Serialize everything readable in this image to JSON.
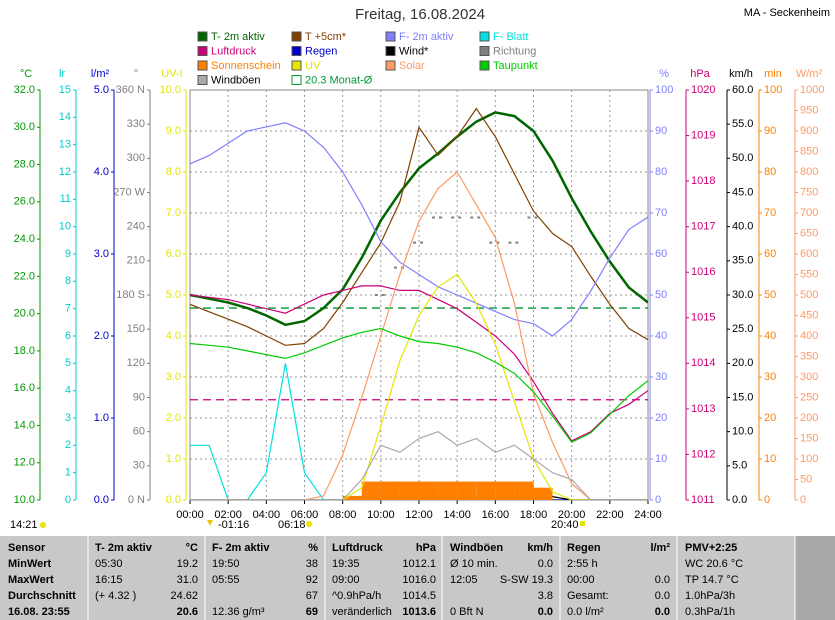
{
  "chart_data": {
    "type": "line",
    "title": "Freitag, 16.08.2024",
    "subtitle": "MA - Seckenheim",
    "x": [
      0,
      1,
      2,
      3,
      4,
      5,
      6,
      7,
      8,
      9,
      10,
      11,
      12,
      13,
      14,
      15,
      16,
      17,
      18,
      19,
      20,
      21,
      22,
      23,
      24
    ],
    "xlim": [
      0,
      24
    ],
    "xticks": [
      {
        "value": 0,
        "label": "00:00"
      },
      {
        "value": 2,
        "label": "02:00"
      },
      {
        "value": 4,
        "label": "04:00"
      },
      {
        "value": 6,
        "label": "06:00"
      },
      {
        "value": 8,
        "label": "08:00"
      },
      {
        "value": 10,
        "label": "10:00"
      },
      {
        "value": 12,
        "label": "12:00"
      },
      {
        "value": 14,
        "label": "14:00"
      },
      {
        "value": 16,
        "label": "16:00"
      },
      {
        "value": 18,
        "label": "18:00"
      },
      {
        "value": 20,
        "label": "20:00"
      },
      {
        "value": 22,
        "label": "22:00"
      },
      {
        "value": 24,
        "label": "24:00"
      }
    ],
    "grid": true,
    "axes": [
      {
        "name": "°C",
        "color": "#009900",
        "ylim": [
          10,
          32
        ],
        "yticks": [
          {
            "value": 10,
            "label": "10.0"
          },
          {
            "value": 12,
            "label": "12.0"
          },
          {
            "value": 14,
            "label": "14.0"
          },
          {
            "value": 16,
            "label": "16.0"
          },
          {
            "value": 18,
            "label": "18.0"
          },
          {
            "value": 20,
            "label": "20.0"
          },
          {
            "value": 22,
            "label": "22.0"
          },
          {
            "value": 24,
            "label": "24.0"
          },
          {
            "value": 26,
            "label": "26.0"
          },
          {
            "value": 28,
            "label": "28.0"
          },
          {
            "value": 30,
            "label": "30.0"
          },
          {
            "value": 32,
            "label": "32.0"
          }
        ]
      },
      {
        "name": "lr",
        "color": "#00cccc",
        "ylim": [
          0,
          15
        ],
        "yticks": [
          0,
          1,
          2,
          3,
          4,
          5,
          6,
          7,
          8,
          9,
          10,
          11,
          12,
          13,
          14,
          15
        ]
      },
      {
        "name": "l/m²",
        "color": "#0000cc",
        "ylim": [
          0,
          5
        ],
        "yticks": [
          {
            "value": 0,
            "label": "0.0"
          },
          {
            "value": 1,
            "label": "1.0"
          },
          {
            "value": 2,
            "label": "2.0"
          },
          {
            "value": 3,
            "label": "3.0"
          },
          {
            "value": 4,
            "label": "4.0"
          },
          {
            "value": 5,
            "label": "5.0"
          }
        ]
      },
      {
        "name": "°",
        "color": "#808080",
        "ylim": [
          0,
          360
        ],
        "yticks": [
          {
            "value": 0,
            "label": "0 N"
          },
          30,
          60,
          90,
          120,
          150,
          {
            "value": 180,
            "label": "180 S"
          },
          210,
          240,
          {
            "value": 270,
            "label": "270 W"
          },
          300,
          330,
          {
            "value": 360,
            "label": "360 N"
          }
        ]
      },
      {
        "name": "UV-I",
        "color": "#e6e600",
        "ylim": [
          0,
          10
        ],
        "yticks": [
          {
            "value": 0,
            "label": "0.0"
          },
          {
            "value": 1,
            "label": "1.0"
          },
          {
            "value": 2,
            "label": "2.0"
          },
          {
            "value": 3,
            "label": "3.0"
          },
          {
            "value": 4,
            "label": "4.0"
          },
          {
            "value": 5,
            "label": "5.0"
          },
          {
            "value": 6,
            "label": "6.0"
          },
          {
            "value": 7,
            "label": "7.0"
          },
          {
            "value": 8,
            "label": "8.0"
          },
          {
            "value": 9,
            "label": "9.0"
          },
          {
            "value": 10,
            "label": "10.0"
          }
        ]
      },
      {
        "name": "%",
        "color": "#8080ff",
        "ylim": [
          0,
          100
        ],
        "yticks": [
          0,
          10,
          20,
          30,
          40,
          50,
          60,
          70,
          80,
          90,
          100
        ]
      },
      {
        "name": "hPa",
        "color": "#cc0077",
        "ylim": [
          1011,
          1020
        ],
        "yticks": [
          1011,
          1012,
          1013,
          1014,
          1015,
          1016,
          1017,
          1018,
          1019,
          1020
        ]
      },
      {
        "name": "km/h",
        "color": "#000000",
        "ylim": [
          0,
          60
        ],
        "yticks": [
          {
            "value": 0,
            "label": "0.0"
          },
          {
            "value": 5,
            "label": "5.0"
          },
          {
            "value": 10,
            "label": "10.0"
          },
          {
            "value": 15,
            "label": "15.0"
          },
          {
            "value": 20,
            "label": "20.0"
          },
          {
            "value": 25,
            "label": "25.0"
          },
          {
            "value": 30,
            "label": "30.0"
          },
          {
            "value": 35,
            "label": "35.0"
          },
          {
            "value": 40,
            "label": "40.0"
          },
          {
            "value": 45,
            "label": "45.0"
          },
          {
            "value": 50,
            "label": "50.0"
          },
          {
            "value": 55,
            "label": "55.0"
          },
          {
            "value": 60,
            "label": "60.0"
          }
        ]
      },
      {
        "name": "min",
        "color": "#ff8000",
        "ylim": [
          0,
          100
        ],
        "yticks": [
          0,
          10,
          20,
          30,
          40,
          50,
          60,
          70,
          80,
          90,
          100
        ]
      },
      {
        "name": "W/m²",
        "color": "#ff9966",
        "ylim": [
          0,
          1000
        ],
        "yticks": [
          0,
          50,
          100,
          150,
          200,
          250,
          300,
          350,
          400,
          450,
          500,
          550,
          600,
          650,
          700,
          750,
          800,
          850,
          900,
          950,
          1000
        ]
      }
    ],
    "series": [
      {
        "name": "T- 2m aktiv",
        "color": "#006600",
        "axis": 0,
        "width": 2.5,
        "values": [
          21.0,
          20.8,
          20.6,
          20.3,
          19.9,
          19.4,
          19.6,
          20.3,
          21.3,
          23.0,
          25.0,
          26.5,
          27.8,
          28.6,
          29.5,
          30.3,
          30.8,
          30.6,
          29.8,
          28.2,
          26.2,
          24.4,
          22.8,
          21.4,
          20.6
        ]
      },
      {
        "name": "T +5cm*",
        "color": "#804000",
        "axis": 0,
        "values": [
          20.5,
          20.1,
          19.7,
          19.3,
          18.8,
          18.3,
          18.4,
          19.2,
          20.6,
          22.2,
          23.8,
          26.0,
          30.0,
          28.5,
          29.5,
          31.0,
          29.5,
          27.5,
          25.5,
          24.3,
          23.6,
          22.0,
          20.5,
          19.2,
          18.6
        ]
      },
      {
        "name": "F- 2m aktiv",
        "color": "#8080ff",
        "axis": 5,
        "values": [
          82,
          84,
          87,
          90,
          91,
          92,
          90,
          86,
          80,
          72,
          63,
          58,
          55,
          52,
          50,
          48,
          46,
          44,
          43,
          40,
          44,
          51,
          59,
          66,
          69
        ]
      },
      {
        "name": "F- Blatt",
        "color": "#00e0e0",
        "axis": 1,
        "values": [
          2,
          2,
          0,
          0,
          1,
          5,
          1,
          0,
          0,
          0,
          0,
          0,
          0,
          0,
          0,
          0,
          0,
          0,
          0,
          0,
          0,
          0,
          0,
          0,
          0
        ]
      },
      {
        "name": "Luftdruck",
        "color": "#cc0077",
        "axis": 6,
        "values": [
          1015.5,
          1015.45,
          1015.4,
          1015.3,
          1015.2,
          1015.1,
          1015.3,
          1015.5,
          1015.6,
          1015.7,
          1015.7,
          1015.6,
          1015.6,
          1015.4,
          1015.2,
          1014.9,
          1014.6,
          1014.2,
          1013.6,
          1012.9,
          1012.3,
          1012.5,
          1012.9,
          1013.1,
          1013.4
        ]
      },
      {
        "name": "Regen",
        "color": "#0000cc",
        "axis": 2,
        "values": [
          0,
          0,
          0,
          0,
          0,
          0,
          0,
          0,
          0,
          0,
          0,
          0,
          0,
          0,
          0,
          0,
          0,
          0,
          0,
          0,
          0,
          0,
          0,
          0,
          0
        ]
      },
      {
        "name": "Wind*",
        "color": "#000000",
        "axis": 7,
        "values": [
          0,
          0,
          0,
          0,
          0,
          0,
          0,
          0,
          0,
          0.5,
          1.5,
          2,
          1.5,
          2,
          2.5,
          2,
          2,
          2.5,
          1,
          0.5,
          0,
          0,
          0,
          0,
          0
        ]
      },
      {
        "name": "Richtung",
        "color": "#808080",
        "axis": 3,
        "style": "dash",
        "values": [
          null,
          null,
          null,
          null,
          null,
          null,
          null,
          null,
          null,
          null,
          180,
          204,
          226,
          248,
          248,
          248,
          226,
          226,
          248,
          null,
          null,
          null,
          null,
          null,
          null
        ]
      },
      {
        "name": "Sonnenschein",
        "color": "#ff8000",
        "axis": 8,
        "style": "bar",
        "values": [
          0,
          0,
          0,
          0,
          0,
          0,
          0,
          0,
          1,
          4.5,
          4.5,
          4.5,
          4.5,
          4.5,
          4.5,
          4.5,
          4.5,
          4.5,
          3,
          0,
          0,
          0,
          0,
          0,
          0
        ]
      },
      {
        "name": "UV",
        "color": "#e6e600",
        "axis": 4,
        "values": [
          0,
          0,
          0,
          0,
          0,
          0,
          0,
          0,
          0,
          0.3,
          1.8,
          3.4,
          4.5,
          5.2,
          5.5,
          4.8,
          3.8,
          2.4,
          1.0,
          0.2,
          0,
          0,
          0,
          0,
          0
        ]
      },
      {
        "name": "Solar",
        "color": "#ff9966",
        "axis": 9,
        "values": [
          0,
          0,
          0,
          0,
          0,
          0,
          0,
          10,
          110,
          250,
          400,
          550,
          680,
          760,
          800,
          720,
          640,
          480,
          260,
          140,
          40,
          0,
          0,
          0,
          0
        ]
      },
      {
        "name": "Taupunkt",
        "color": "#00cc00",
        "axis": 0,
        "values": [
          18.4,
          18.3,
          18.2,
          18.0,
          17.8,
          17.6,
          17.9,
          18.3,
          18.7,
          19.0,
          19.2,
          18.8,
          18.5,
          18.4,
          18.2,
          17.9,
          17.4,
          16.8,
          15.8,
          14.5,
          13.1,
          13.6,
          14.6,
          15.6,
          16.4
        ]
      },
      {
        "name": "Windböen",
        "color": "#aaaaaa",
        "axis": 7,
        "values": [
          0,
          0,
          0,
          0,
          0,
          0,
          0,
          0,
          0,
          3,
          8,
          7,
          9,
          10,
          8,
          9,
          7,
          8,
          6,
          4,
          3,
          0,
          0,
          0,
          0
        ]
      }
    ],
    "reference_lines": [
      {
        "name": "20.3 Monat-Ø",
        "value": 20.3,
        "axis": 0,
        "color": "#009933"
      },
      {
        "value": 1013.2,
        "axis": 6,
        "color": "#cc0077"
      }
    ],
    "annotations": [
      "14:21",
      "-01:16",
      "06:18",
      "20:40"
    ]
  },
  "table": {
    "header": [
      "Sensor",
      "T- 2m aktiv",
      "°C",
      "F- 2m aktiv",
      "%",
      "Luftdruck",
      "hPa",
      "Windböen",
      "km/h",
      "Regen",
      "l/m²",
      "PMV+2:25"
    ],
    "rows": [
      [
        "MinWert",
        "05:30",
        "19.2",
        "19:50",
        "38",
        "19:35",
        "1012.1",
        "Ø 10 min.",
        "0.0",
        "2:55 h",
        null,
        "WC 20.6 °C"
      ],
      [
        "MaxWert",
        "16:15",
        "31.0",
        "05:55",
        "92",
        "09:00",
        "1016.0",
        "12:05",
        "S-SW 19.3",
        "00:00",
        "0.0",
        "TP 14.7 °C"
      ],
      [
        "Durchschnitt",
        "(+ 4.32 )",
        "24.62",
        null,
        "67",
        "^0.9hPa/h",
        "1014.5",
        null,
        "3.8",
        "Gesamt:",
        "0.0",
        "1.0hPa/3h"
      ],
      [
        "16.08. 23:55",
        null,
        "20.6",
        "12.36 g/m³",
        "69",
        "veränderlich",
        "1013.6",
        "0 Bft N",
        "0.0",
        "0.0 l/m²",
        "0.0",
        "0.3hPa/1h"
      ]
    ]
  }
}
